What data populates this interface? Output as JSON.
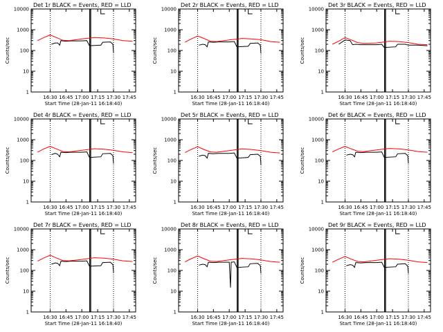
{
  "chart_data": [
    {
      "type": "line",
      "title": "Det 1r BLACK = Events, RED = LLD",
      "xlabel": "Start Time (28-Jan-11 16:18:40)",
      "ylabel": "Counts/sec",
      "y_scale": "log",
      "ylim": [
        1,
        10000
      ],
      "x_tick_labels": [
        "16:30",
        "16:45",
        "17:00",
        "17:15",
        "17:30",
        "17:45"
      ],
      "y_tick_labels": [
        "1",
        "10",
        "100",
        "1000",
        "10000"
      ],
      "series": [
        {
          "name": "Events",
          "color": "#000000",
          "x": [
            16.52,
            16.58,
            16.62,
            16.65,
            16.67,
            16.75,
            16.83,
            16.9,
            17.0,
            17.08,
            17.12,
            17.3,
            17.33,
            17.45,
            17.49,
            17.5
          ],
          "values": [
            200,
            230,
            230,
            180,
            300,
            280,
            290,
            290,
            290,
            300,
            170,
            180,
            250,
            260,
            200,
            80
          ]
        },
        {
          "name": "LLD",
          "color": "#ff0000",
          "x": [
            16.3,
            16.4,
            16.5,
            16.6,
            16.7,
            16.8,
            17.0,
            17.2,
            17.35,
            17.5,
            17.65,
            17.8
          ],
          "values": [
            300,
            420,
            560,
            420,
            310,
            300,
            360,
            420,
            400,
            360,
            300,
            280
          ]
        }
      ]
    },
    {
      "type": "line",
      "title": "Det 2r BLACK = Events, RED = LLD",
      "xlabel": "Start Time (28-Jan-11 16:18:40)",
      "ylabel": "Counts/sec",
      "y_scale": "log",
      "ylim": [
        1,
        10000
      ],
      "x_tick_labels": [
        "16:30",
        "16:45",
        "17:00",
        "17:15",
        "17:30",
        "17:45"
      ],
      "y_tick_labels": [
        "1",
        "10",
        "100",
        "1000",
        "10000"
      ],
      "series": [
        {
          "name": "Events",
          "color": "#000000",
          "x": [
            16.52,
            16.58,
            16.62,
            16.65,
            16.67,
            16.75,
            16.83,
            16.9,
            17.0,
            17.08,
            17.12,
            17.3,
            17.33,
            17.45,
            17.49,
            17.5
          ],
          "values": [
            180,
            200,
            190,
            150,
            260,
            250,
            260,
            260,
            260,
            270,
            150,
            160,
            220,
            230,
            180,
            70
          ]
        },
        {
          "name": "LLD",
          "color": "#ff0000",
          "x": [
            16.3,
            16.4,
            16.5,
            16.6,
            16.7,
            16.8,
            17.0,
            17.2,
            17.35,
            17.5,
            17.65,
            17.8
          ],
          "values": [
            250,
            360,
            500,
            380,
            280,
            270,
            320,
            380,
            360,
            330,
            270,
            250
          ]
        }
      ]
    },
    {
      "type": "line",
      "title": "Det 3r BLACK = Events, RED = LLD",
      "xlabel": "Start Time (28-Jan-11 16:18:40)",
      "ylabel": "Counts/sec",
      "y_scale": "log",
      "ylim": [
        1,
        10000
      ],
      "x_tick_labels": [
        "16:30",
        "16:45",
        "17:00",
        "17:15",
        "17:30",
        "17:45"
      ],
      "y_tick_labels": [
        "1",
        "10",
        "100",
        "1000",
        "10000"
      ],
      "series": [
        {
          "name": "Events",
          "color": "#000000",
          "x": [
            16.4,
            16.5,
            16.58,
            16.62,
            16.67,
            16.75,
            16.9,
            17.0,
            17.08,
            17.12,
            17.3,
            17.33,
            17.45,
            17.5,
            17.65,
            17.8
          ],
          "values": [
            200,
            320,
            300,
            190,
            200,
            190,
            190,
            190,
            200,
            140,
            150,
            200,
            200,
            180,
            180,
            170
          ]
        },
        {
          "name": "LLD",
          "color": "#ff0000",
          "x": [
            16.3,
            16.4,
            16.5,
            16.6,
            16.7,
            16.8,
            17.0,
            17.2,
            17.35,
            17.5,
            17.65,
            17.8
          ],
          "values": [
            200,
            280,
            420,
            320,
            240,
            220,
            230,
            280,
            270,
            240,
            200,
            190
          ]
        }
      ]
    },
    {
      "type": "line",
      "title": "Det 4r BLACK = Events, RED = LLD",
      "xlabel": "Start Time (28-Jan-11 16:18:40)",
      "ylabel": "Counts/sec",
      "y_scale": "log",
      "ylim": [
        1,
        10000
      ],
      "x_tick_labels": [
        "16:30",
        "16:45",
        "17:00",
        "17:15",
        "17:30",
        "17:45"
      ],
      "y_tick_labels": [
        "1",
        "10",
        "100",
        "1000",
        "10000"
      ],
      "series": [
        {
          "name": "Events",
          "color": "#000000",
          "x": [
            16.52,
            16.58,
            16.62,
            16.65,
            16.67,
            16.75,
            16.83,
            16.9,
            17.0,
            17.08,
            17.12,
            17.3,
            17.33,
            17.45,
            17.49,
            17.5
          ],
          "values": [
            190,
            220,
            200,
            150,
            250,
            240,
            250,
            250,
            250,
            260,
            140,
            150,
            210,
            220,
            170,
            70
          ]
        },
        {
          "name": "LLD",
          "color": "#ff0000",
          "x": [
            16.3,
            16.4,
            16.5,
            16.6,
            16.7,
            16.8,
            17.0,
            17.2,
            17.35,
            17.5,
            17.65,
            17.8
          ],
          "values": [
            250,
            360,
            480,
            360,
            270,
            260,
            310,
            370,
            350,
            310,
            260,
            240
          ]
        }
      ]
    },
    {
      "type": "line",
      "title": "Det 5r BLACK = Events, RED = LLD",
      "xlabel": "Start Time (28-Jan-11 16:18:40)",
      "ylabel": "Counts/sec",
      "y_scale": "log",
      "ylim": [
        1,
        10000
      ],
      "x_tick_labels": [
        "16:30",
        "16:45",
        "17:00",
        "17:15",
        "17:30",
        "17:45"
      ],
      "y_tick_labels": [
        "1",
        "10",
        "100",
        "1000",
        "10000"
      ],
      "series": [
        {
          "name": "Events",
          "color": "#000000",
          "x": [
            16.52,
            16.58,
            16.62,
            16.65,
            16.67,
            16.75,
            16.83,
            16.9,
            17.0,
            17.08,
            17.12,
            17.3,
            17.33,
            17.45,
            17.49,
            17.5
          ],
          "values": [
            160,
            180,
            170,
            130,
            220,
            210,
            220,
            220,
            220,
            230,
            130,
            140,
            190,
            200,
            160,
            60
          ]
        },
        {
          "name": "LLD",
          "color": "#ff0000",
          "x": [
            16.3,
            16.4,
            16.5,
            16.6,
            16.7,
            16.8,
            17.0,
            17.2,
            17.35,
            17.5,
            17.65,
            17.8
          ],
          "values": [
            240,
            340,
            460,
            340,
            260,
            250,
            300,
            360,
            340,
            300,
            250,
            230
          ]
        }
      ]
    },
    {
      "type": "line",
      "title": "Det 6r BLACK = Events, RED = LLD",
      "xlabel": "Start Time (28-Jan-11 16:18:40)",
      "ylabel": "Counts/sec",
      "y_scale": "log",
      "ylim": [
        1,
        10000
      ],
      "x_tick_labels": [
        "16:30",
        "16:45",
        "17:00",
        "17:15",
        "17:30",
        "17:45"
      ],
      "y_tick_labels": [
        "1",
        "10",
        "100",
        "1000",
        "10000"
      ],
      "series": [
        {
          "name": "Events",
          "color": "#000000",
          "x": [
            16.52,
            16.58,
            16.62,
            16.65,
            16.67,
            16.75,
            16.83,
            16.9,
            17.0,
            17.08,
            17.12,
            17.3,
            17.33,
            17.45,
            17.49,
            17.5
          ],
          "values": [
            180,
            200,
            190,
            150,
            250,
            240,
            250,
            250,
            250,
            260,
            140,
            150,
            210,
            220,
            170,
            70
          ]
        },
        {
          "name": "LLD",
          "color": "#ff0000",
          "x": [
            16.3,
            16.4,
            16.5,
            16.6,
            16.7,
            16.8,
            17.0,
            17.2,
            17.35,
            17.5,
            17.65,
            17.8
          ],
          "values": [
            260,
            360,
            480,
            360,
            280,
            270,
            320,
            380,
            360,
            320,
            270,
            250
          ]
        }
      ]
    },
    {
      "type": "line",
      "title": "Det 7r BLACK = Events, RED = LLD",
      "xlabel": "Start Time (28-Jan-11 16:18:40)",
      "ylabel": "Counts/sec",
      "y_scale": "log",
      "ylim": [
        1,
        10000
      ],
      "x_tick_labels": [
        "16:30",
        "16:45",
        "17:00",
        "17:15",
        "17:30",
        "17:45"
      ],
      "y_tick_labels": [
        "1",
        "10",
        "100",
        "1000",
        "10000"
      ],
      "series": [
        {
          "name": "Events",
          "color": "#000000",
          "x": [
            16.52,
            16.58,
            16.62,
            16.65,
            16.67,
            16.75,
            16.83,
            16.9,
            17.0,
            17.08,
            17.12,
            17.3,
            17.33,
            17.45,
            17.49,
            17.5
          ],
          "values": [
            200,
            230,
            220,
            170,
            280,
            270,
            280,
            280,
            280,
            290,
            160,
            170,
            240,
            250,
            190,
            80
          ]
        },
        {
          "name": "LLD",
          "color": "#ff0000",
          "x": [
            16.3,
            16.4,
            16.5,
            16.6,
            16.7,
            16.8,
            17.0,
            17.2,
            17.35,
            17.5,
            17.65,
            17.8
          ],
          "values": [
            280,
            400,
            540,
            400,
            300,
            290,
            340,
            410,
            390,
            350,
            290,
            270
          ]
        }
      ]
    },
    {
      "type": "line",
      "title": "Det 8r BLACK = Events, RED = LLD",
      "xlabel": "Start Time (28-Jan-11 16:18:40)",
      "ylabel": "Counts/sec",
      "y_scale": "log",
      "ylim": [
        1,
        10000
      ],
      "x_tick_labels": [
        "16:30",
        "16:45",
        "17:00",
        "17:15",
        "17:30",
        "17:45"
      ],
      "y_tick_labels": [
        "1",
        "10",
        "100",
        "1000",
        "10000"
      ],
      "series": [
        {
          "name": "Events",
          "color": "#000000",
          "x": [
            16.52,
            16.58,
            16.62,
            16.65,
            16.67,
            16.75,
            16.83,
            16.9,
            17.0,
            17.02,
            17.03,
            17.08,
            17.12,
            17.3,
            17.33,
            17.45,
            17.49,
            17.5
          ],
          "values": [
            180,
            200,
            190,
            150,
            250,
            240,
            250,
            250,
            250,
            15,
            250,
            260,
            140,
            150,
            210,
            220,
            170,
            70
          ]
        },
        {
          "name": "LLD",
          "color": "#ff0000",
          "x": [
            16.3,
            16.4,
            16.5,
            16.6,
            16.7,
            16.8,
            17.0,
            17.2,
            17.35,
            17.5,
            17.65,
            17.8
          ],
          "values": [
            260,
            370,
            500,
            370,
            280,
            270,
            320,
            380,
            360,
            320,
            270,
            250
          ]
        }
      ]
    },
    {
      "type": "line",
      "title": "Det 9r BLACK = Events, RED = LLD",
      "xlabel": "Start Time (28-Jan-11 16:18:40)",
      "ylabel": "Counts/sec",
      "y_scale": "log",
      "ylim": [
        1,
        10000
      ],
      "x_tick_labels": [
        "16:30",
        "16:45",
        "17:00",
        "17:15",
        "17:30",
        "17:45"
      ],
      "y_tick_labels": [
        "1",
        "10",
        "100",
        "1000",
        "10000"
      ],
      "series": [
        {
          "name": "Events",
          "color": "#000000",
          "x": [
            16.52,
            16.58,
            16.62,
            16.65,
            16.67,
            16.75,
            16.83,
            16.9,
            17.0,
            17.08,
            17.12,
            17.3,
            17.33,
            17.45,
            17.49,
            17.5
          ],
          "values": [
            170,
            190,
            180,
            140,
            240,
            230,
            240,
            240,
            240,
            250,
            140,
            150,
            200,
            210,
            160,
            70
          ]
        },
        {
          "name": "LLD",
          "color": "#ff0000",
          "x": [
            16.3,
            16.4,
            16.5,
            16.6,
            16.7,
            16.8,
            17.0,
            17.2,
            17.35,
            17.5,
            17.65,
            17.8
          ],
          "values": [
            250,
            350,
            470,
            350,
            270,
            260,
            310,
            370,
            350,
            310,
            260,
            240
          ]
        }
      ]
    }
  ]
}
